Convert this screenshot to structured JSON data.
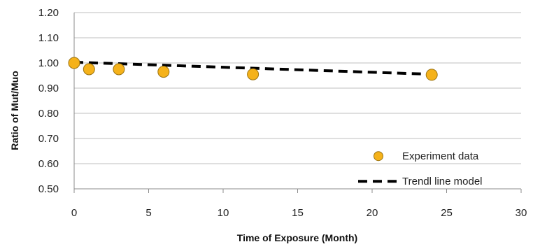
{
  "chart_data": {
    "type": "scatter",
    "xlabel": "Time of Exposure  (Month)",
    "ylabel": "Ratio of Mut/Muo",
    "xlim": [
      0,
      30
    ],
    "ylim": [
      0.5,
      1.2
    ],
    "x_ticks": [
      0,
      5,
      10,
      15,
      20,
      25,
      30
    ],
    "x_tick_labels": [
      "0",
      "5",
      "10",
      "15",
      "20",
      "25",
      "30"
    ],
    "y_ticks": [
      0.5,
      0.6,
      0.7,
      0.8,
      0.9,
      1.0,
      1.1,
      1.2
    ],
    "y_tick_labels": [
      "0.50",
      "0.60",
      "0.70",
      "0.80",
      "0.90",
      "1.00",
      "1.10",
      "1.20"
    ],
    "grid": "horizontal",
    "legend_position": "bottom-right",
    "series": [
      {
        "name": "Experiment data",
        "kind": "scatter",
        "color": "#F5B21A",
        "edge_color": "#9C7412",
        "points": [
          {
            "x": 0,
            "y": 1.0
          },
          {
            "x": 1,
            "y": 0.975
          },
          {
            "x": 3,
            "y": 0.975
          },
          {
            "x": 6,
            "y": 0.965
          },
          {
            "x": 12,
            "y": 0.955
          },
          {
            "x": 24,
            "y": 0.953
          }
        ]
      },
      {
        "name": "Trendl line model",
        "kind": "line",
        "style": "dashed",
        "color": "#000000",
        "points": [
          {
            "x": 0,
            "y": 1.003
          },
          {
            "x": 24,
            "y": 0.955
          }
        ]
      }
    ]
  }
}
